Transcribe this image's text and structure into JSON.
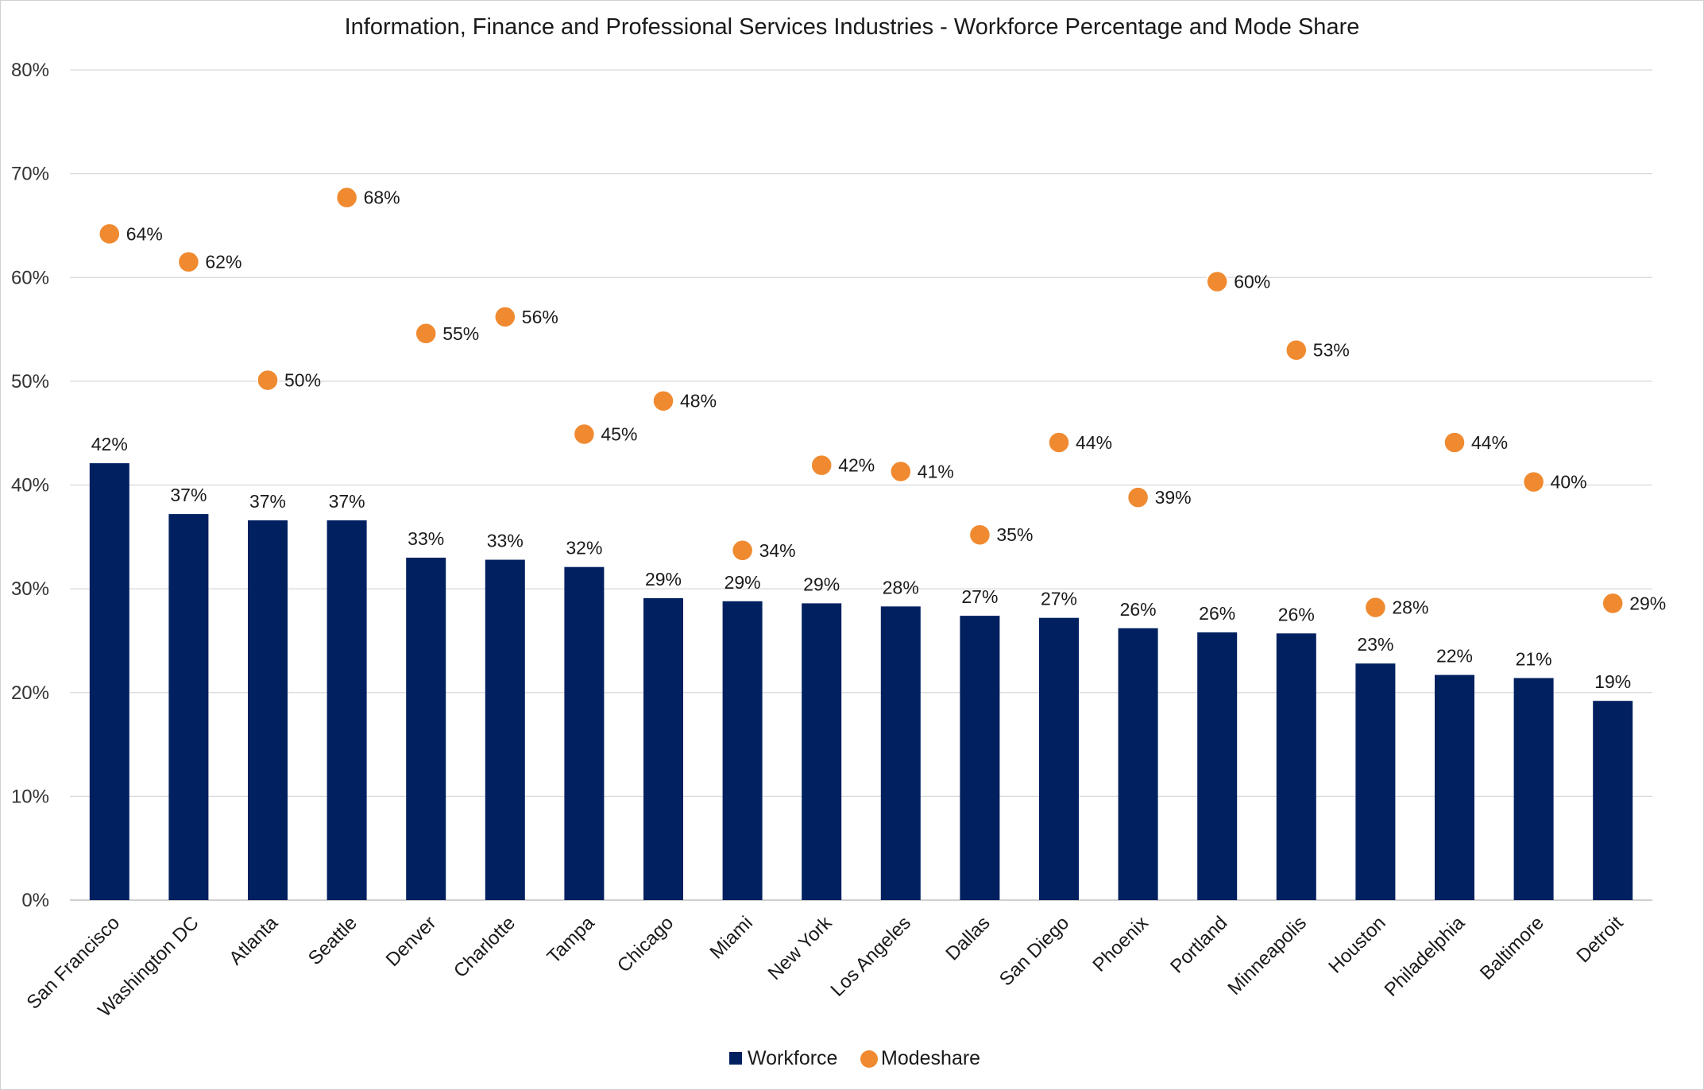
{
  "chart_data": {
    "type": "bar",
    "title": "Information, Finance and Professional Services Industries - Workforce Percentage and Mode Share",
    "xlabel": "",
    "ylabel": "",
    "ylim": [
      0,
      80
    ],
    "yticks": [
      "0%",
      "10%",
      "20%",
      "30%",
      "40%",
      "50%",
      "60%",
      "70%",
      "80%"
    ],
    "grid": true,
    "legend_position": "bottom",
    "categories": [
      "San Francisco",
      "Washington DC",
      "Atlanta",
      "Seattle",
      "Denver",
      "Charlotte",
      "Tampa",
      "Chicago",
      "Miami",
      "New York",
      "Los Angeles",
      "Dallas",
      "San Diego",
      "Phoenix",
      "Portland",
      "Minneapolis",
      "Houston",
      "Philadelphia",
      "Baltimore",
      "Detroit"
    ],
    "series": [
      {
        "name": "Workforce",
        "type": "bar",
        "color": "#002060",
        "values": [
          42.1,
          37.2,
          36.6,
          36.6,
          33.0,
          32.8,
          32.1,
          29.1,
          28.8,
          28.6,
          28.3,
          27.4,
          27.2,
          26.2,
          25.8,
          25.7,
          22.8,
          21.7,
          21.4,
          19.2
        ],
        "labels": [
          "42%",
          "37%",
          "37%",
          "37%",
          "33%",
          "33%",
          "32%",
          "29%",
          "29%",
          "29%",
          "28%",
          "27%",
          "27%",
          "26%",
          "26%",
          "26%",
          "23%",
          "22%",
          "21%",
          "19%"
        ]
      },
      {
        "name": "Modeshare",
        "type": "scatter",
        "color": "#F08A30",
        "values": [
          64.2,
          61.5,
          50.1,
          67.7,
          54.6,
          56.2,
          44.9,
          48.1,
          33.7,
          41.9,
          41.3,
          35.2,
          44.1,
          38.8,
          59.6,
          53.0,
          28.2,
          44.1,
          40.3,
          28.6
        ],
        "labels": [
          "64%",
          "62%",
          "50%",
          "68%",
          "55%",
          "56%",
          "45%",
          "48%",
          "34%",
          "42%",
          "41%",
          "35%",
          "44%",
          "39%",
          "60%",
          "53%",
          "28%",
          "44%",
          "40%",
          "29%"
        ]
      }
    ]
  }
}
